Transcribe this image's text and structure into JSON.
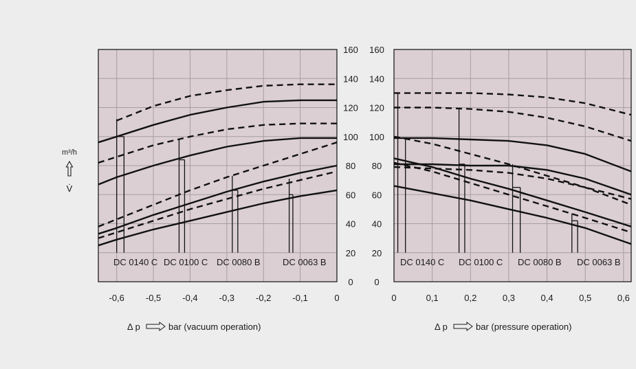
{
  "colors": {
    "background": "#eeedee",
    "plot_fill": "#dbcfd3",
    "grid": "#a89da2",
    "line": "#111111"
  },
  "units": {
    "y_unit": "m³/h",
    "y_symbol": "V̇",
    "y_arrow": "up-arrow-icon"
  },
  "chart_data": [
    {
      "type": "line",
      "name": "vacuum",
      "xlabel": "bar (vacuum operation)",
      "x_prefix": "Δ p",
      "xlim": [
        -0.65,
        0
      ],
      "ylim": [
        0,
        160
      ],
      "x_ticks": [
        "-0,6",
        "-0,5",
        "-0,4",
        "-0,3",
        "-0,2",
        "-0,1",
        "0"
      ],
      "x_tick_values": [
        -0.6,
        -0.5,
        -0.4,
        -0.3,
        -0.2,
        -0.1,
        0
      ],
      "y_ticks": [
        "0",
        "20",
        "40",
        "60",
        "80",
        "100",
        "120",
        "140",
        "160"
      ],
      "y_tick_values": [
        0,
        20,
        40,
        60,
        80,
        100,
        120,
        140,
        160
      ],
      "y_axis_side": "right",
      "grid": true,
      "models": [
        "DC 0140 C",
        "DC 0100 C",
        "DC 0080 B",
        "DC 0063 B"
      ],
      "series": [
        {
          "style": "dashed",
          "points": [
            [
              -0.6,
              111
            ],
            [
              -0.5,
              121
            ],
            [
              -0.4,
              128
            ],
            [
              -0.3,
              132
            ],
            [
              -0.2,
              135
            ],
            [
              -0.1,
              136
            ],
            [
              0,
              136
            ]
          ]
        },
        {
          "style": "solid",
          "points": [
            [
              -0.65,
              96
            ],
            [
              -0.6,
              100
            ],
            [
              -0.5,
              108
            ],
            [
              -0.4,
              115
            ],
            [
              -0.3,
              120
            ],
            [
              -0.2,
              124
            ],
            [
              -0.1,
              125
            ],
            [
              0,
              125
            ]
          ]
        },
        {
          "style": "dashed",
          "points": [
            [
              -0.65,
              82
            ],
            [
              -0.6,
              86
            ],
            [
              -0.5,
              94
            ],
            [
              -0.4,
              100
            ],
            [
              -0.3,
              105
            ],
            [
              -0.2,
              108
            ],
            [
              -0.1,
              109
            ],
            [
              0,
              109
            ]
          ]
        },
        {
          "style": "solid",
          "points": [
            [
              -0.65,
              67
            ],
            [
              -0.6,
              72
            ],
            [
              -0.5,
              80
            ],
            [
              -0.4,
              87
            ],
            [
              -0.3,
              93
            ],
            [
              -0.2,
              97
            ],
            [
              -0.1,
              99
            ],
            [
              0,
              99
            ]
          ]
        },
        {
          "style": "dashed",
          "points": [
            [
              -0.65,
              38
            ],
            [
              -0.6,
              43
            ],
            [
              -0.5,
              53
            ],
            [
              -0.4,
              63
            ],
            [
              -0.3,
              72
            ],
            [
              -0.2,
              80
            ],
            [
              -0.1,
              88
            ],
            [
              0,
              96
            ]
          ]
        },
        {
          "style": "solid",
          "points": [
            [
              -0.65,
              33
            ],
            [
              -0.6,
              37
            ],
            [
              -0.5,
              46
            ],
            [
              -0.4,
              54
            ],
            [
              -0.3,
              62
            ],
            [
              -0.2,
              69
            ],
            [
              -0.1,
              75
            ],
            [
              0,
              80
            ]
          ]
        },
        {
          "style": "dashed",
          "points": [
            [
              -0.65,
              30
            ],
            [
              -0.6,
              34
            ],
            [
              -0.5,
              42
            ],
            [
              -0.4,
              50
            ],
            [
              -0.3,
              57
            ],
            [
              -0.2,
              64
            ],
            [
              -0.1,
              70
            ],
            [
              0,
              76
            ]
          ]
        },
        {
          "style": "solid",
          "points": [
            [
              -0.65,
              25
            ],
            [
              -0.6,
              29
            ],
            [
              -0.5,
              36
            ],
            [
              -0.4,
              42
            ],
            [
              -0.3,
              48
            ],
            [
              -0.2,
              54
            ],
            [
              -0.1,
              59
            ],
            [
              0,
              63
            ]
          ]
        }
      ],
      "markers": [
        {
          "x1": -0.6,
          "x2": -0.58,
          "y1": 112,
          "y2": 100
        },
        {
          "x1": -0.43,
          "x2": -0.415,
          "y1": 98,
          "y2": 84
        },
        {
          "x1": -0.285,
          "x2": -0.27,
          "y1": 73,
          "y2": 63
        },
        {
          "x1": -0.13,
          "x2": -0.12,
          "y1": 71,
          "y2": 60
        }
      ]
    },
    {
      "type": "line",
      "name": "pressure",
      "xlabel": "bar (pressure operation)",
      "x_prefix": "Δ p",
      "xlim": [
        0,
        0.62
      ],
      "ylim": [
        0,
        160
      ],
      "x_ticks": [
        "0",
        "0,1",
        "0,2",
        "0,3",
        "0,4",
        "0,5",
        "0,6"
      ],
      "x_tick_values": [
        0,
        0.1,
        0.2,
        0.3,
        0.4,
        0.5,
        0.6
      ],
      "y_ticks": [
        "0",
        "20",
        "40",
        "60",
        "80",
        "100",
        "120",
        "140",
        "160"
      ],
      "y_tick_values": [
        0,
        20,
        40,
        60,
        80,
        100,
        120,
        140,
        160
      ],
      "y_axis_side": "left",
      "grid": true,
      "models": [
        "DC 0140 C",
        "DC 0100 C",
        "DC 0080 B",
        "DC 0063 B"
      ],
      "series": [
        {
          "style": "dashed",
          "points": [
            [
              0,
              130
            ],
            [
              0.1,
              130
            ],
            [
              0.2,
              130
            ],
            [
              0.3,
              129
            ],
            [
              0.4,
              127
            ],
            [
              0.5,
              123
            ],
            [
              0.62,
              115
            ]
          ]
        },
        {
          "style": "dashed",
          "points": [
            [
              0,
              120
            ],
            [
              0.1,
              120
            ],
            [
              0.2,
              119
            ],
            [
              0.3,
              117
            ],
            [
              0.4,
              113
            ],
            [
              0.5,
              107
            ],
            [
              0.62,
              97
            ]
          ]
        },
        {
          "style": "solid",
          "points": [
            [
              0,
              99
            ],
            [
              0.1,
              99
            ],
            [
              0.2,
              98
            ],
            [
              0.3,
              97
            ],
            [
              0.4,
              94
            ],
            [
              0.5,
              88
            ],
            [
              0.62,
              76
            ]
          ]
        },
        {
          "style": "dashed",
          "points": [
            [
              0,
              100
            ],
            [
              0.1,
              95
            ],
            [
              0.2,
              88
            ],
            [
              0.3,
              81
            ],
            [
              0.4,
              73
            ],
            [
              0.5,
              65
            ],
            [
              0.62,
              53
            ]
          ]
        },
        {
          "style": "solid",
          "points": [
            [
              0,
              81
            ],
            [
              0.1,
              81
            ],
            [
              0.2,
              80
            ],
            [
              0.3,
              80
            ],
            [
              0.4,
              77
            ],
            [
              0.5,
              71
            ],
            [
              0.62,
              60
            ]
          ]
        },
        {
          "style": "dashed",
          "points": [
            [
              0,
              79
            ],
            [
              0.1,
              78
            ],
            [
              0.2,
              77
            ],
            [
              0.3,
              75
            ],
            [
              0.4,
              71
            ],
            [
              0.5,
              65
            ],
            [
              0.62,
              57
            ]
          ]
        },
        {
          "style": "solid",
          "points": [
            [
              0,
              85
            ],
            [
              0.1,
              79
            ],
            [
              0.2,
              71
            ],
            [
              0.3,
              64
            ],
            [
              0.4,
              56
            ],
            [
              0.5,
              48
            ],
            [
              0.62,
              38
            ]
          ]
        },
        {
          "style": "dashed",
          "points": [
            [
              0,
              82
            ],
            [
              0.1,
              76
            ],
            [
              0.2,
              68
            ],
            [
              0.3,
              60
            ],
            [
              0.4,
              52
            ],
            [
              0.5,
              44
            ],
            [
              0.62,
              34
            ]
          ]
        },
        {
          "style": "solid",
          "points": [
            [
              0,
              66
            ],
            [
              0.1,
              61
            ],
            [
              0.2,
              56
            ],
            [
              0.3,
              50
            ],
            [
              0.4,
              44
            ],
            [
              0.5,
              37
            ],
            [
              0.62,
              26
            ]
          ]
        }
      ],
      "markers": [
        {
          "x1": 0.01,
          "x2": 0.03,
          "y1": 130,
          "y2": 99
        },
        {
          "x1": 0.17,
          "x2": 0.185,
          "y1": 119,
          "y2": 81
        },
        {
          "x1": 0.31,
          "x2": 0.33,
          "y1": 81,
          "y2": 65
        },
        {
          "x1": 0.465,
          "x2": 0.48,
          "y1": 47,
          "y2": 42
        }
      ]
    }
  ]
}
